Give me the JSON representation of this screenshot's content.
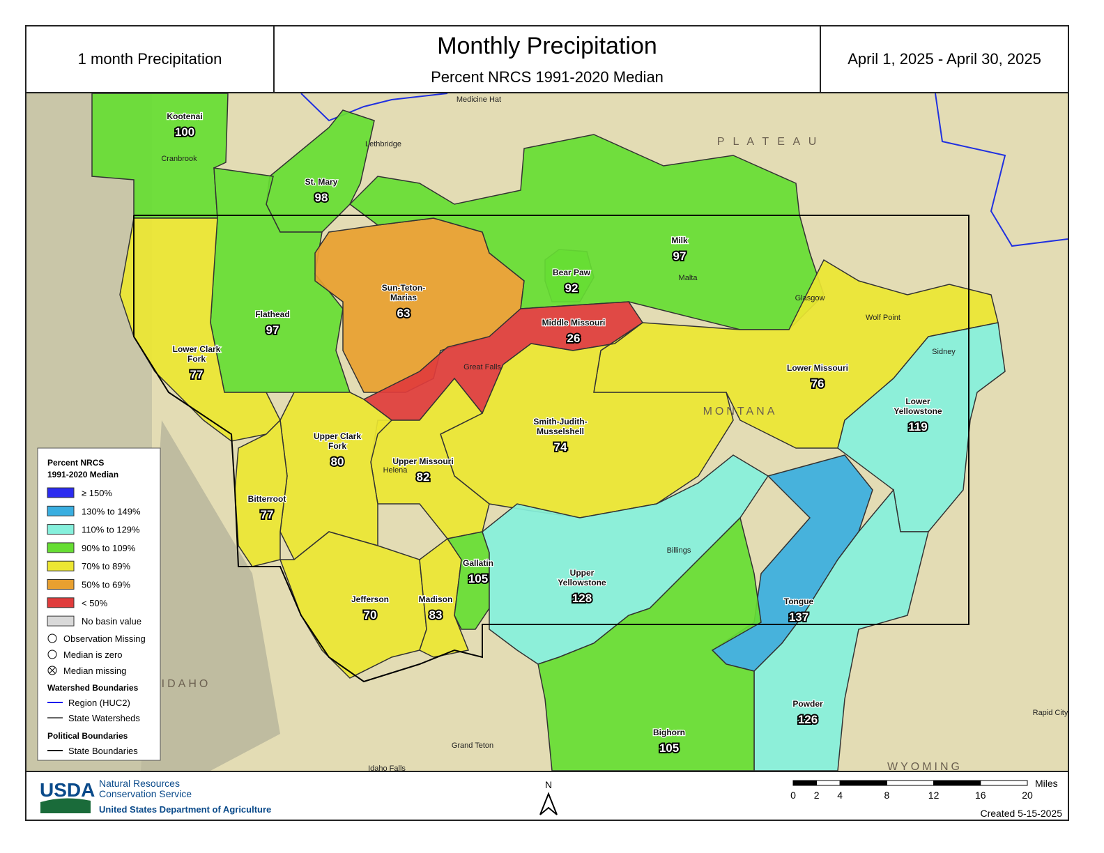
{
  "header": {
    "left": "1 month Precipitation",
    "title": "Monthly Precipitation",
    "subtitle": "Percent NRCS 1991-2020 Median",
    "right": "April 1, 2025 - April 30, 2025"
  },
  "basins": [
    {
      "name_lines": [
        "Kootenai"
      ],
      "value": 100,
      "color": "#66dd33"
    },
    {
      "name_lines": [
        "St. Mary"
      ],
      "value": 98,
      "color": "#66dd33"
    },
    {
      "name_lines": [
        "Flathead"
      ],
      "value": 97,
      "color": "#66dd33"
    },
    {
      "name_lines": [
        "Sun-Teton-",
        "Marias"
      ],
      "value": 63,
      "color": "#e8a030"
    },
    {
      "name_lines": [
        "Bear Paw"
      ],
      "value": 92,
      "color": "#66dd33"
    },
    {
      "name_lines": [
        "Milk"
      ],
      "value": 97,
      "color": "#66dd33"
    },
    {
      "name_lines": [
        "Middle Missouri"
      ],
      "value": 26,
      "color": "#e03c3c"
    },
    {
      "name_lines": [
        "Lower Clark",
        "Fork"
      ],
      "value": 77,
      "color": "#ece632"
    },
    {
      "name_lines": [
        "Lower Missouri"
      ],
      "value": 76,
      "color": "#ece632"
    },
    {
      "name_lines": [
        "Lower",
        "Yellowstone"
      ],
      "value": 119,
      "color": "#86f0dc"
    },
    {
      "name_lines": [
        "Smith-Judith-",
        "Musselshell"
      ],
      "value": 74,
      "color": "#ece632"
    },
    {
      "name_lines": [
        "Upper Missouri"
      ],
      "value": 82,
      "color": "#ece632"
    },
    {
      "name_lines": [
        "Upper Clark",
        "Fork"
      ],
      "value": 80,
      "color": "#ece632"
    },
    {
      "name_lines": [
        "Bitterroot"
      ],
      "value": 77,
      "color": "#ece632"
    },
    {
      "name_lines": [
        "Jefferson"
      ],
      "value": 70,
      "color": "#ece632"
    },
    {
      "name_lines": [
        "Madison"
      ],
      "value": 83,
      "color": "#ece632"
    },
    {
      "name_lines": [
        "Gallatin"
      ],
      "value": 105,
      "color": "#66dd33"
    },
    {
      "name_lines": [
        "Upper",
        "Yellowstone"
      ],
      "value": 128,
      "color": "#86f0dc"
    },
    {
      "name_lines": [
        "Tongue"
      ],
      "value": 137,
      "color": "#3aaee0"
    },
    {
      "name_lines": [
        "Powder"
      ],
      "value": 126,
      "color": "#86f0dc"
    },
    {
      "name_lines": [
        "Bighorn"
      ],
      "value": 105,
      "color": "#66dd33"
    }
  ],
  "places": [
    "Medicine Hat",
    "Lethbridge",
    "Cranbrook",
    "Great Falls",
    "Helena",
    "Malta",
    "Glasgow",
    "Wolf Point",
    "Sidney",
    "Billings",
    "Grand Teton",
    "Idaho Falls",
    "Rapid City",
    "IDAHO",
    "WYOMING",
    "MONTANA",
    "P L A T E A U"
  ],
  "legend": {
    "title_lines": [
      "Percent NRCS",
      "1991-2020 Median"
    ],
    "classes": [
      {
        "label": "≥ 150%",
        "color": "#2b2bf0"
      },
      {
        "label": "130% to 149%",
        "color": "#3aaee0"
      },
      {
        "label": "110% to 129%",
        "color": "#86f0dc"
      },
      {
        "label": "90% to 109%",
        "color": "#66dd33"
      },
      {
        "label": "70% to 89%",
        "color": "#ece632"
      },
      {
        "label": "50% to 69%",
        "color": "#e8a030"
      },
      {
        "label": "< 50%",
        "color": "#e03c3c"
      },
      {
        "label": "No basin value",
        "color": "#d9d9d9"
      }
    ],
    "symbols": [
      "Observation Missing",
      "Median is zero",
      "Median missing"
    ],
    "watershed_title": "Watershed Boundaries",
    "watershed_items": [
      {
        "label": "Region (HUC2)",
        "color": "#1a1aee"
      },
      {
        "label": "State Watersheds",
        "color": "#666666"
      }
    ],
    "political_title": "Political Boundaries",
    "political_items": [
      {
        "label": "State Boundaries",
        "color": "#000000"
      }
    ]
  },
  "footer": {
    "logo": "USDA",
    "agency_lines": [
      "Natural Resources",
      "Conservation Service"
    ],
    "department": "United States Department of Agriculture",
    "north": "N",
    "scale_ticks": [
      0,
      2,
      4,
      8,
      12,
      16,
      20
    ],
    "scale_unit": "Miles",
    "created": "Created 5-15-2025"
  }
}
